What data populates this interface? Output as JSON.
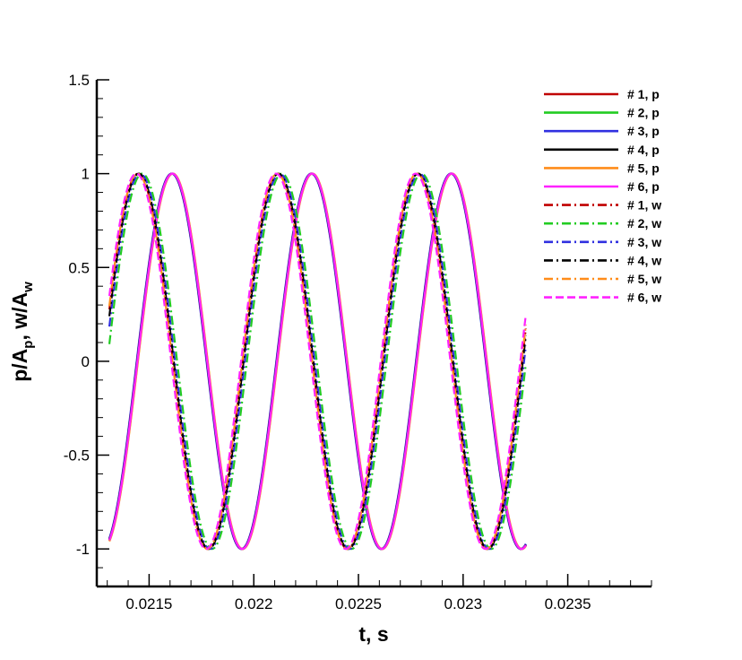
{
  "chart_data": {
    "type": "line",
    "xlabel": "t, s",
    "ylabel_parts": [
      "p/A",
      "p",
      ", w/A",
      "w"
    ],
    "xlim": [
      0.02125,
      0.0239
    ],
    "ylim": [
      -1.2,
      1.5
    ],
    "x_ticks": [
      0.0215,
      0.022,
      0.0225,
      0.023,
      0.0235
    ],
    "x_tick_labels": [
      "0.0215",
      "0.022",
      "0.0225",
      "0.023",
      "0.0235"
    ],
    "y_ticks": [
      -1,
      -0.5,
      0,
      0.5,
      1,
      1.5
    ],
    "y_tick_labels": [
      "-1",
      "-0.5",
      "0",
      "0.5",
      "1",
      "1.5"
    ],
    "grid": false,
    "legend_position": "top-right",
    "t_range": [
      0.02131,
      0.0233
    ],
    "signals": {
      "p": {
        "period": 0.000667,
        "peak_t": 0.02161,
        "model": "cosine"
      },
      "w": {
        "period": 0.000667,
        "peak_t": 0.021455,
        "model": "cosine"
      }
    },
    "series": [
      {
        "name": "# 1, p",
        "signal": "p",
        "color": "#c00000",
        "dash": "solid",
        "shift": 0.0
      },
      {
        "name": "# 2, p",
        "signal": "p",
        "color": "#22cc22",
        "dash": "solid",
        "shift": 2e-06
      },
      {
        "name": "# 3, p",
        "signal": "p",
        "color": "#3030e0",
        "dash": "solid",
        "shift": -2e-06
      },
      {
        "name": "# 4, p",
        "signal": "p",
        "color": "#000000",
        "dash": "solid",
        "shift": 0.0
      },
      {
        "name": "# 5, p",
        "signal": "p",
        "color": "#ff8c1a",
        "dash": "solid",
        "shift": 3e-06
      },
      {
        "name": "# 6, p",
        "signal": "p",
        "color": "#ff22ff",
        "dash": "solid",
        "shift": 1e-06
      },
      {
        "name": "# 1, w",
        "signal": "w",
        "color": "#c00000",
        "dash": "dashdot",
        "shift": -8e-06
      },
      {
        "name": "# 2, w",
        "signal": "w",
        "color": "#22cc22",
        "dash": "dashdot",
        "shift": 1.2e-05
      },
      {
        "name": "# 3, w",
        "signal": "w",
        "color": "#3030e0",
        "dash": "dashdot",
        "shift": 2e-06
      },
      {
        "name": "# 4, w",
        "signal": "w",
        "color": "#000000",
        "dash": "dashdot",
        "shift": -4e-06
      },
      {
        "name": "# 5, w",
        "signal": "w",
        "color": "#ff8c1a",
        "dash": "dashdot",
        "shift": -1e-05
      },
      {
        "name": "# 6, w",
        "signal": "w",
        "color": "#ff22ff",
        "dash": "dashdash",
        "shift": -1.6e-05
      }
    ]
  }
}
